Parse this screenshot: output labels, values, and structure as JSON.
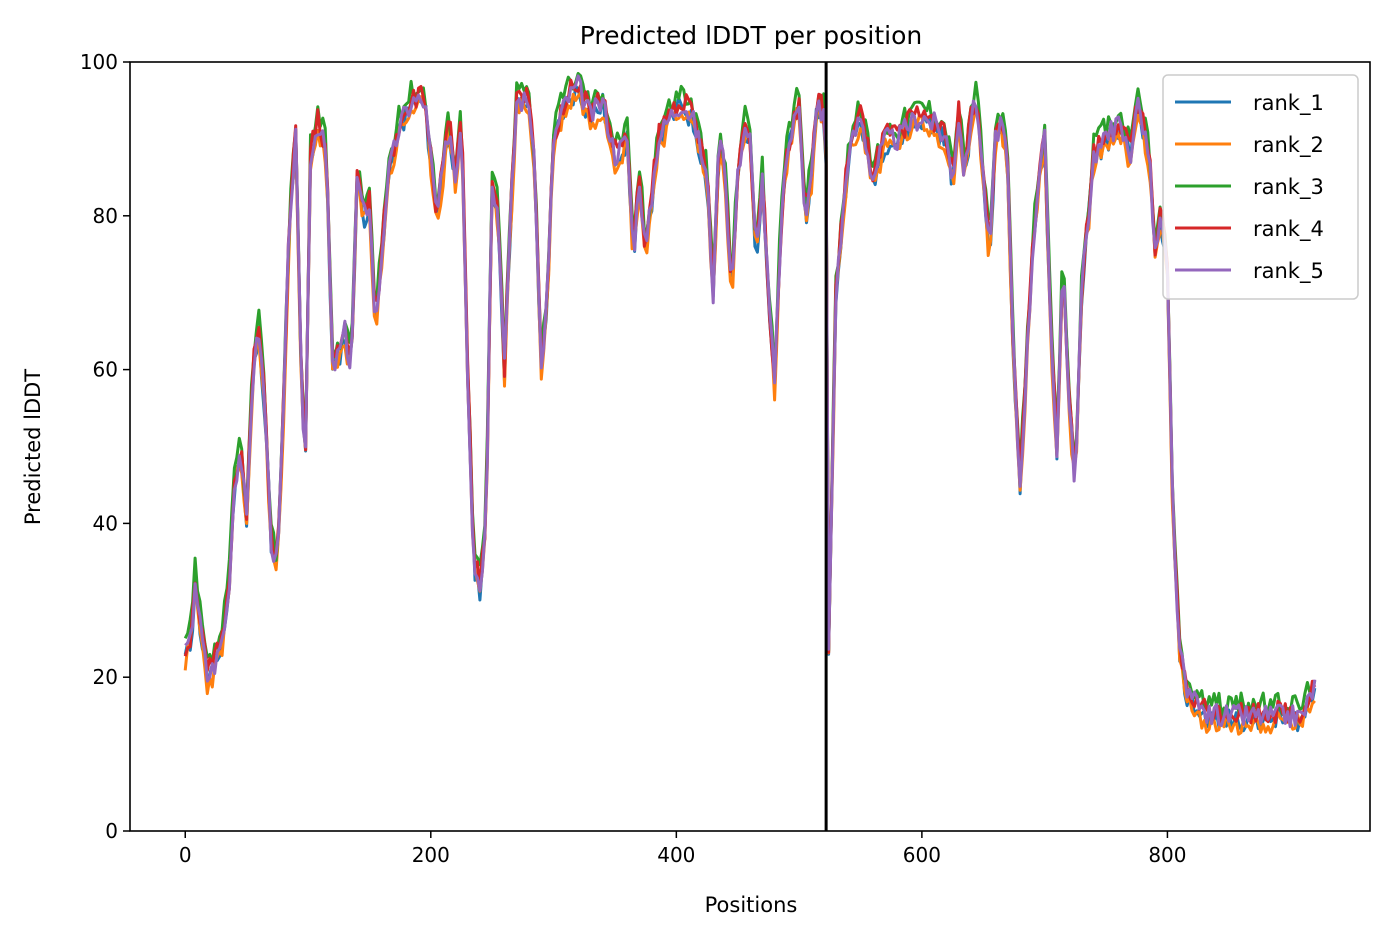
{
  "chart_data": {
    "type": "line",
    "title": "Predicted lDDT per position",
    "xlabel": "Positions",
    "ylabel": "Predicted lDDT",
    "xlim": [
      -45,
      965
    ],
    "ylim": [
      0,
      100
    ],
    "xticks": [
      0,
      200,
      400,
      600,
      800
    ],
    "yticks": [
      0,
      20,
      40,
      60,
      80,
      100
    ],
    "grid": false,
    "legend_position": "top-right",
    "chain_break": 522,
    "x_step": 10,
    "profile": [
      [
        0,
        23
      ],
      [
        5,
        25
      ],
      [
        8,
        33
      ],
      [
        12,
        27
      ],
      [
        18,
        20
      ],
      [
        25,
        22
      ],
      [
        30,
        25
      ],
      [
        35,
        30
      ],
      [
        40,
        45
      ],
      [
        45,
        50
      ],
      [
        50,
        40
      ],
      [
        55,
        60
      ],
      [
        60,
        65
      ],
      [
        65,
        55
      ],
      [
        70,
        38
      ],
      [
        75,
        34
      ],
      [
        80,
        55
      ],
      [
        85,
        80
      ],
      [
        90,
        90
      ],
      [
        95,
        55
      ],
      [
        98,
        50
      ],
      [
        102,
        88
      ],
      [
        108,
        92
      ],
      [
        115,
        88
      ],
      [
        120,
        60
      ],
      [
        125,
        62
      ],
      [
        130,
        65
      ],
      [
        135,
        60
      ],
      [
        140,
        85
      ],
      [
        145,
        80
      ],
      [
        150,
        82
      ],
      [
        155,
        65
      ],
      [
        160,
        75
      ],
      [
        165,
        85
      ],
      [
        175,
        92
      ],
      [
        185,
        95
      ],
      [
        195,
        95
      ],
      [
        205,
        80
      ],
      [
        215,
        92
      ],
      [
        220,
        85
      ],
      [
        225,
        93
      ],
      [
        230,
        60
      ],
      [
        235,
        35
      ],
      [
        240,
        32
      ],
      [
        245,
        40
      ],
      [
        250,
        85
      ],
      [
        255,
        80
      ],
      [
        260,
        60
      ],
      [
        265,
        80
      ],
      [
        270,
        95
      ],
      [
        280,
        95
      ],
      [
        285,
        85
      ],
      [
        290,
        60
      ],
      [
        295,
        70
      ],
      [
        300,
        90
      ],
      [
        310,
        95
      ],
      [
        320,
        97
      ],
      [
        330,
        93
      ],
      [
        340,
        95
      ],
      [
        350,
        88
      ],
      [
        360,
        90
      ],
      [
        365,
        75
      ],
      [
        370,
        85
      ],
      [
        375,
        75
      ],
      [
        385,
        90
      ],
      [
        395,
        93
      ],
      [
        405,
        95
      ],
      [
        415,
        92
      ],
      [
        425,
        85
      ],
      [
        430,
        70
      ],
      [
        435,
        90
      ],
      [
        440,
        85
      ],
      [
        445,
        70
      ],
      [
        450,
        85
      ],
      [
        455,
        92
      ],
      [
        460,
        90
      ],
      [
        465,
        75
      ],
      [
        470,
        85
      ],
      [
        475,
        70
      ],
      [
        480,
        58
      ],
      [
        485,
        78
      ],
      [
        490,
        88
      ],
      [
        500,
        95
      ],
      [
        505,
        80
      ],
      [
        510,
        85
      ],
      [
        515,
        95
      ],
      [
        520,
        93
      ],
      [
        522,
        88
      ],
      [
        524,
        23
      ],
      [
        530,
        70
      ],
      [
        540,
        88
      ],
      [
        550,
        93
      ],
      [
        560,
        85
      ],
      [
        570,
        90
      ],
      [
        580,
        90
      ],
      [
        590,
        92
      ],
      [
        600,
        93
      ],
      [
        610,
        92
      ],
      [
        620,
        90
      ],
      [
        625,
        85
      ],
      [
        630,
        93
      ],
      [
        635,
        85
      ],
      [
        640,
        93
      ],
      [
        645,
        95
      ],
      [
        650,
        85
      ],
      [
        655,
        75
      ],
      [
        660,
        90
      ],
      [
        665,
        93
      ],
      [
        670,
        85
      ],
      [
        675,
        60
      ],
      [
        680,
        45
      ],
      [
        685,
        60
      ],
      [
        690,
        75
      ],
      [
        695,
        85
      ],
      [
        700,
        90
      ],
      [
        705,
        65
      ],
      [
        710,
        50
      ],
      [
        715,
        75
      ],
      [
        720,
        55
      ],
      [
        725,
        45
      ],
      [
        730,
        70
      ],
      [
        740,
        88
      ],
      [
        750,
        90
      ],
      [
        760,
        92
      ],
      [
        770,
        88
      ],
      [
        775,
        95
      ],
      [
        780,
        92
      ],
      [
        785,
        88
      ],
      [
        790,
        75
      ],
      [
        795,
        80
      ],
      [
        800,
        72
      ],
      [
        805,
        38
      ],
      [
        810,
        24
      ],
      [
        815,
        18
      ],
      [
        825,
        16
      ],
      [
        835,
        15
      ],
      [
        850,
        15
      ],
      [
        860,
        15
      ],
      [
        870,
        15
      ],
      [
        880,
        15
      ],
      [
        890,
        15
      ],
      [
        900,
        15
      ],
      [
        910,
        15
      ],
      [
        920,
        19
      ]
    ],
    "series": [
      {
        "name": "rank_1",
        "color": "#1f77b4",
        "offset": -0.5,
        "seed": 11
      },
      {
        "name": "rank_2",
        "color": "#ff7f0e",
        "offset": -1.0,
        "seed": 23
      },
      {
        "name": "rank_3",
        "color": "#2ca02c",
        "offset": 1.5,
        "seed": 37
      },
      {
        "name": "rank_4",
        "color": "#d62728",
        "offset": 0.5,
        "seed": 51
      },
      {
        "name": "rank_5",
        "color": "#9467bd",
        "offset": 0.0,
        "seed": 67
      }
    ]
  }
}
